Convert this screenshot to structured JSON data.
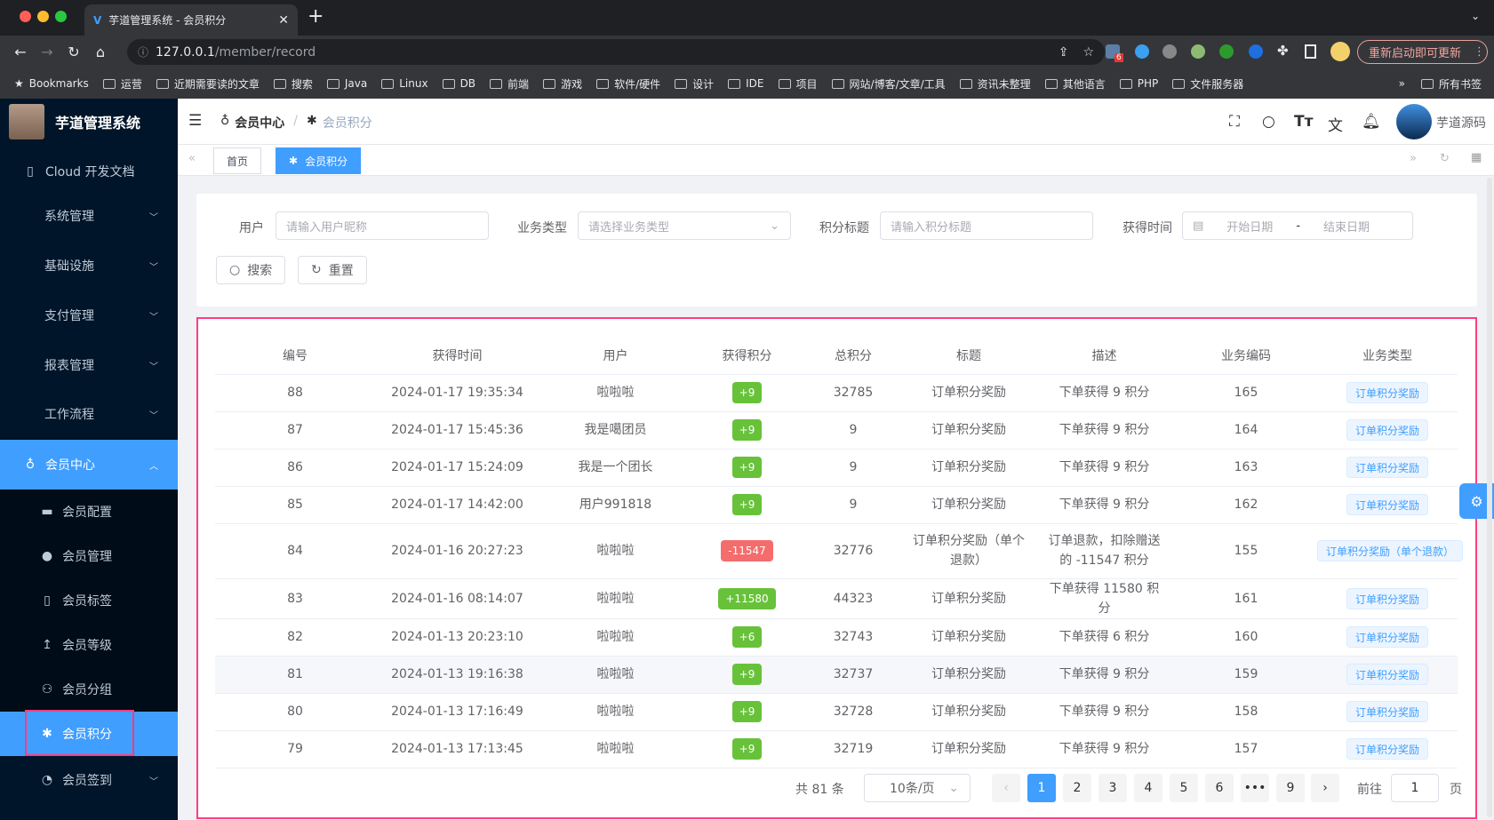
{
  "browser": {
    "tab_title": "芋道管理系统 - 会员积分",
    "url_host": "127.0.0.1",
    "url_path": "/member/record",
    "update_label": "重新启动即可更新",
    "ext_badge": "6",
    "bookmarks": [
      "Bookmarks",
      "运营",
      "近期需要读的文章",
      "搜索",
      "Java",
      "Linux",
      "DB",
      "前端",
      "游戏",
      "软件/硬件",
      "设计",
      "IDE",
      "项目",
      "网站/博客/文章/工具",
      "资讯未整理",
      "其他语言",
      "PHP",
      "文件服务器"
    ],
    "bookmarks_more": "»",
    "all_bookmarks": "所有书签"
  },
  "sidebar": {
    "app_name": "芋道管理系统",
    "items": [
      {
        "label": "Cloud 开发文档",
        "icon": "document-icon"
      },
      {
        "label": "系统管理"
      },
      {
        "label": "基础设施"
      },
      {
        "label": "支付管理"
      },
      {
        "label": "报表管理"
      },
      {
        "label": "工作流程"
      },
      {
        "label": "会员中心",
        "icon": "bicycle-icon",
        "expanded": true
      }
    ],
    "sub_items": [
      {
        "label": "会员配置",
        "icon": "archive-icon"
      },
      {
        "label": "会员管理",
        "icon": "user-icon"
      },
      {
        "label": "会员标签",
        "icon": "bookmark-icon"
      },
      {
        "label": "会员等级",
        "icon": "upload-icon"
      },
      {
        "label": "会员分组",
        "icon": "group-icon"
      },
      {
        "label": "会员积分",
        "icon": "asterisk-icon",
        "active": true
      }
    ],
    "after": {
      "label": "会员签到",
      "icon": "alarm-icon"
    }
  },
  "header": {
    "breadcrumb": [
      "会员中心",
      "会员积分"
    ],
    "user_name": "芋道源码"
  },
  "tags": {
    "home": "首页",
    "active": "会员积分"
  },
  "search": {
    "user_label": "用户",
    "user_placeholder": "请输入用户昵称",
    "biz_label": "业务类型",
    "biz_placeholder": "请选择业务类型",
    "title_label": "积分标题",
    "title_placeholder": "请输入积分标题",
    "time_label": "获得时间",
    "start_placeholder": "开始日期",
    "range_sep": "-",
    "end_placeholder": "结束日期",
    "search_btn": "搜索",
    "reset_btn": "重置"
  },
  "table": {
    "columns": [
      "编号",
      "获得时间",
      "用户",
      "获得积分",
      "总积分",
      "标题",
      "描述",
      "业务编码",
      "业务类型"
    ],
    "rows": [
      [
        "88",
        "2024-01-17 19:35:34",
        "啦啦啦",
        "+9",
        "32785",
        "订单积分奖励",
        "下单获得 9 积分",
        "165",
        "订单积分奖励"
      ],
      [
        "87",
        "2024-01-17 15:45:36",
        "我是噶团员",
        "+9",
        "9",
        "订单积分奖励",
        "下单获得 9 积分",
        "164",
        "订单积分奖励"
      ],
      [
        "86",
        "2024-01-17 15:24:09",
        "我是一个团长",
        "+9",
        "9",
        "订单积分奖励",
        "下单获得 9 积分",
        "163",
        "订单积分奖励"
      ],
      [
        "85",
        "2024-01-17 14:42:00",
        "用户991818",
        "+9",
        "9",
        "订单积分奖励",
        "下单获得 9 积分",
        "162",
        "订单积分奖励"
      ],
      [
        "84",
        "2024-01-16 20:27:23",
        "啦啦啦",
        "-11547",
        "32776",
        "订单积分奖励（单个退款）",
        "订单退款，扣除赠送的 -11547 积分",
        "155",
        "订单积分奖励（单个退款）"
      ],
      [
        "83",
        "2024-01-16 08:14:07",
        "啦啦啦",
        "+11580",
        "44323",
        "订单积分奖励",
        "下单获得 11580 积分",
        "161",
        "订单积分奖励"
      ],
      [
        "82",
        "2024-01-13 20:23:10",
        "啦啦啦",
        "+6",
        "32743",
        "订单积分奖励",
        "下单获得 6 积分",
        "160",
        "订单积分奖励"
      ],
      [
        "81",
        "2024-01-13 19:16:38",
        "啦啦啦",
        "+9",
        "32737",
        "订单积分奖励",
        "下单获得 9 积分",
        "159",
        "订单积分奖励"
      ],
      [
        "80",
        "2024-01-13 17:16:49",
        "啦啦啦",
        "+9",
        "32728",
        "订单积分奖励",
        "下单获得 9 积分",
        "158",
        "订单积分奖励"
      ],
      [
        "79",
        "2024-01-13 17:13:45",
        "啦啦啦",
        "+9",
        "32719",
        "订单积分奖励",
        "下单获得 9 积分",
        "157",
        "订单积分奖励"
      ]
    ]
  },
  "pagination": {
    "total": "共 81 条",
    "page_size": "10条/页",
    "pages": [
      "1",
      "2",
      "3",
      "4",
      "5",
      "6",
      "•••",
      "9"
    ],
    "current": "1",
    "goto_label": "前往",
    "goto_value": "1",
    "page_suffix": "页"
  },
  "colors": {
    "primary": "#409eff",
    "success": "#67c23a",
    "danger": "#f56c6c",
    "sidebar": "#001529",
    "highlight": "#ff3d7f"
  }
}
